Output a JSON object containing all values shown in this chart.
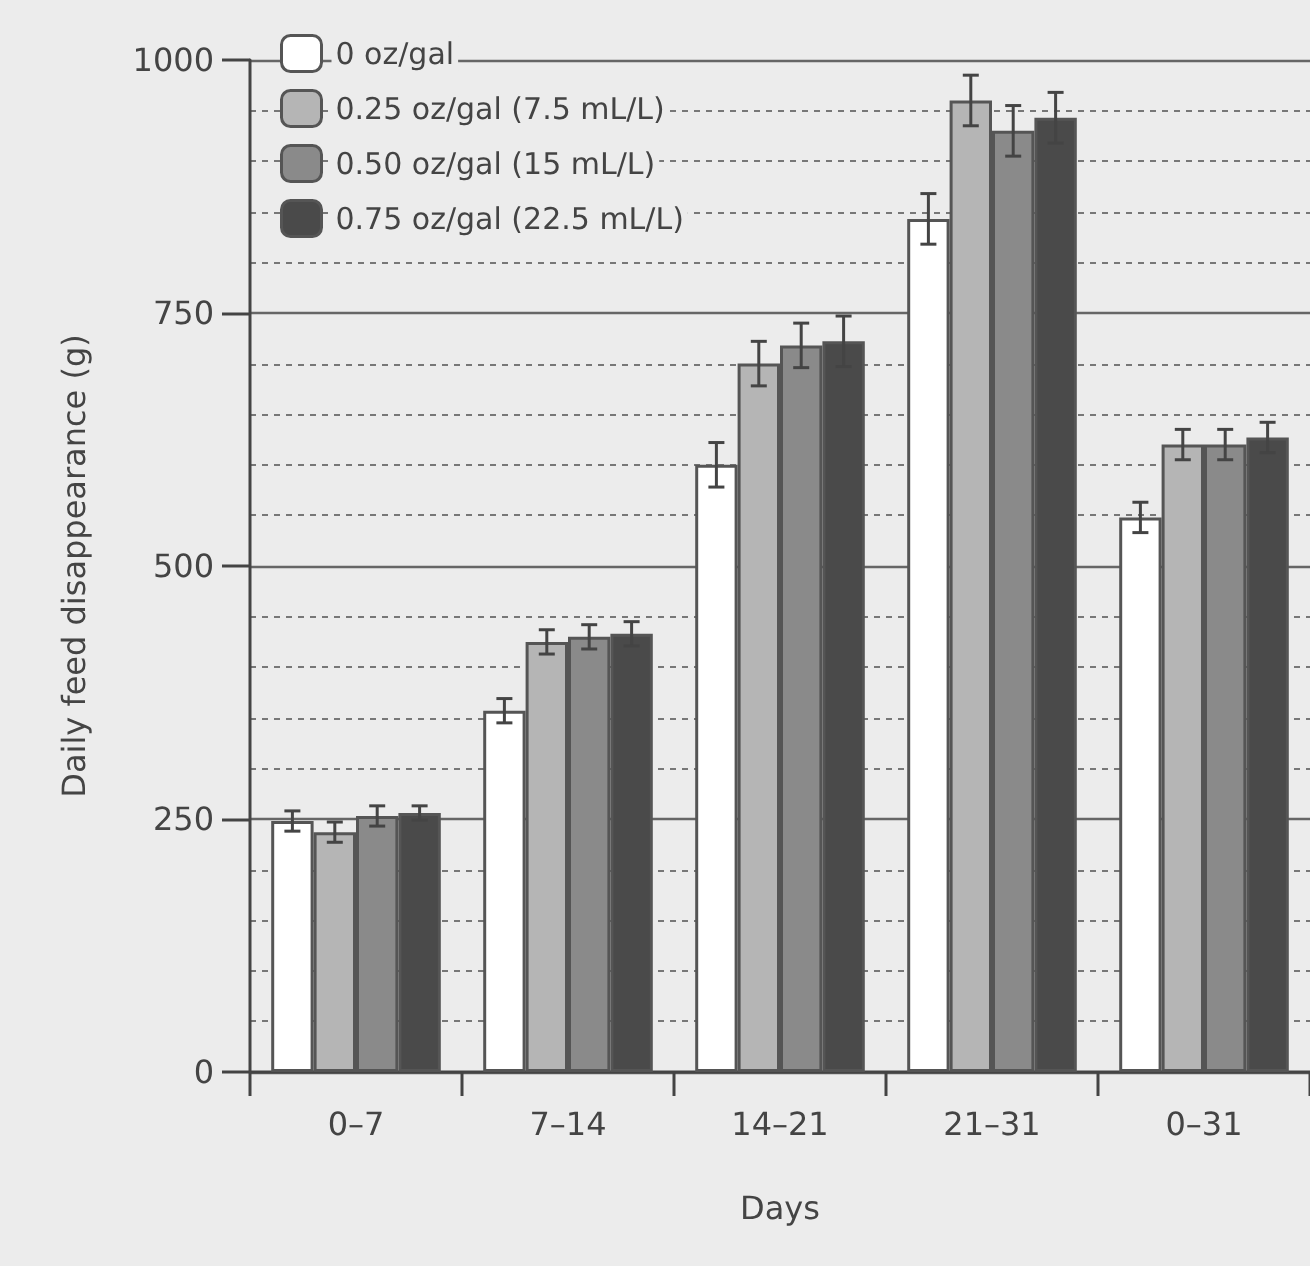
{
  "chart_data": {
    "type": "bar",
    "xlabel": "Days",
    "ylabel": "Daily feed disappearance (g)",
    "categories": [
      "0–7",
      "7–14",
      "14–21",
      "21–31",
      "0–31"
    ],
    "series": [
      {
        "name": "0 oz/gal",
        "color": "#ffffff",
        "values": [
          248,
          357,
          600,
          843,
          548
        ],
        "errors": [
          10,
          12,
          22,
          25,
          15
        ]
      },
      {
        "name": "0.25 oz/gal (7.5 mL/L)",
        "color": "#b5b5b5",
        "values": [
          237,
          425,
          700,
          960,
          620
        ],
        "errors": [
          10,
          12,
          22,
          25,
          15
        ]
      },
      {
        "name": "0.50 oz/gal (15 mL/L)",
        "color": "#8a8a8a",
        "values": [
          253,
          430,
          718,
          930,
          620
        ],
        "errors": [
          10,
          12,
          22,
          25,
          15
        ]
      },
      {
        "name": "0.75 oz/gal (22.5 mL/L)",
        "color": "#4a4a4a",
        "values": [
          256,
          433,
          722,
          943,
          627
        ],
        "errors": [
          7,
          12,
          25,
          25,
          15
        ]
      }
    ],
    "ylim": [
      0,
      1000
    ],
    "yticks": [
      0,
      {
        "value": 50,
        "label": null
      },
      {
        "value": 100,
        "label": null
      },
      {
        "value": 150,
        "label": null
      },
      {
        "value": 200,
        "label": null
      },
      250,
      {
        "value": 300,
        "label": null
      },
      {
        "value": 350,
        "label": null
      },
      {
        "value": 400,
        "label": null
      },
      {
        "value": 450,
        "label": null
      },
      500,
      {
        "value": 550,
        "label": null
      },
      {
        "value": 600,
        "label": null
      },
      {
        "value": 650,
        "label": null
      },
      {
        "value": 700,
        "label": null
      },
      750,
      {
        "value": 800,
        "label": null
      },
      {
        "value": 850,
        "label": null
      },
      {
        "value": 900,
        "label": null
      },
      {
        "value": 950,
        "label": null
      },
      1000
    ],
    "grid": "y",
    "legend": "top left"
  }
}
